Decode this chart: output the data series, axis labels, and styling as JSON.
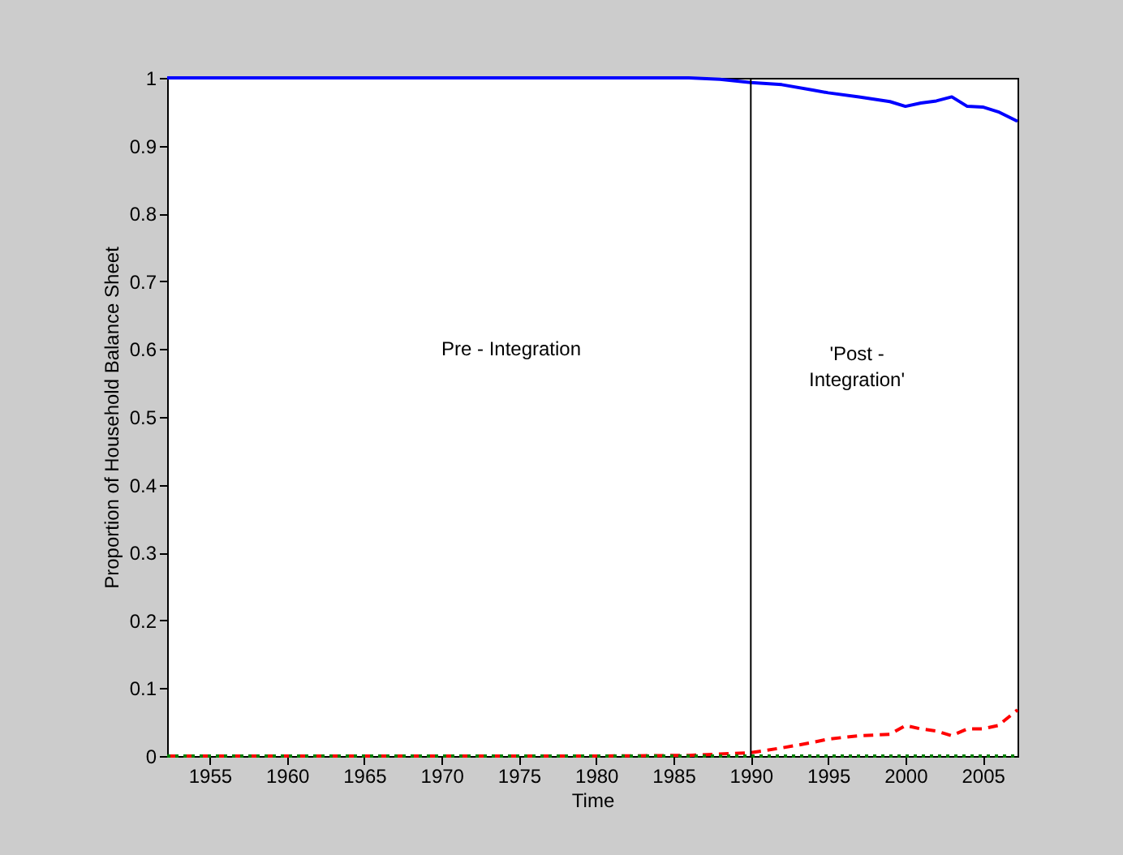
{
  "chart_data": {
    "type": "line",
    "xlabel": "Time",
    "ylabel": "Proportion of Household Balance Sheet",
    "x": [
      1952.25,
      1960,
      1970,
      1980,
      1986,
      1988,
      1990,
      1992,
      1994,
      1995,
      1997,
      1999,
      2000,
      2001,
      2002,
      2003,
      2004,
      2005,
      2006,
      2007.25
    ],
    "series": [
      {
        "color": "#0000ff",
        "line_style": "solid",
        "values": [
          1,
          1,
          1,
          1,
          1,
          0.998,
          0.993,
          0.99,
          0.982,
          0.978,
          0.972,
          0.965,
          0.958,
          0.963,
          0.966,
          0.972,
          0.958,
          0.957,
          0.95,
          0.936
        ]
      },
      {
        "color": "#ff0000",
        "line_style": "dashed",
        "values": [
          0,
          0,
          0,
          0,
          0.001,
          0.003,
          0.005,
          0.012,
          0.02,
          0.025,
          0.03,
          0.032,
          0.045,
          0.04,
          0.037,
          0.03,
          0.04,
          0.04,
          0.045,
          0.068
        ]
      },
      {
        "color": "#008000",
        "line_style": "dotted",
        "values": [
          0,
          0,
          0,
          0,
          0,
          0,
          0,
          0,
          0,
          0,
          0,
          0,
          0,
          0,
          0,
          0,
          0,
          0,
          0,
          0
        ]
      }
    ],
    "xlim": [
      1952.25,
      2007.25
    ],
    "xticks": [
      1955,
      1960,
      1965,
      1970,
      1975,
      1980,
      1985,
      1990,
      1995,
      2000,
      2005
    ],
    "ylim": [
      0,
      1
    ],
    "yticks": [
      0,
      0.1,
      0.2,
      0.3,
      0.4,
      0.5,
      0.6,
      0.7,
      0.8,
      0.9,
      1
    ],
    "ref_lines": [
      {
        "axis": "x",
        "value": 1990,
        "color": "#000000"
      }
    ],
    "annotations": [
      "Pre - Integration",
      "'Post - Integration'"
    ],
    "grid": false
  }
}
